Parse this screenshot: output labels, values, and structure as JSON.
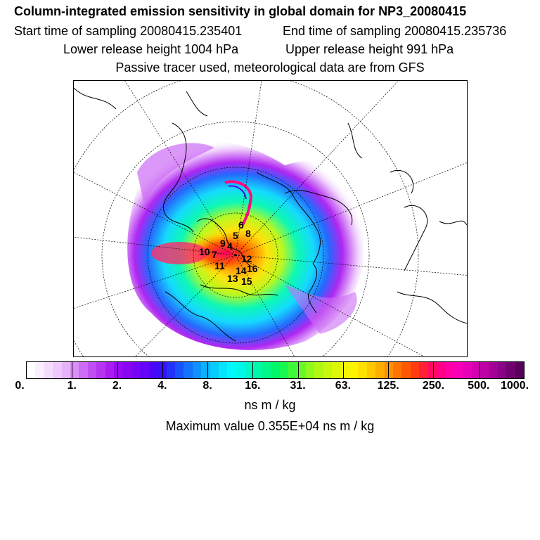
{
  "header": {
    "title": "Column-integrated emission sensitivity in global domain for NP3_20080415",
    "start_time": "Start time of sampling 20080415.235401",
    "end_time": "End time of sampling 20080415.235736",
    "lower_release": "Lower release height 1004 hPa",
    "upper_release": "Upper release height  991 hPa",
    "tracer_note": "Passive tracer used, meteorological data are from GFS"
  },
  "map": {
    "projection": "north-polar-stereographic",
    "field": "Column-integrated emission sensitivity",
    "embedded_labels": [
      "6",
      "5",
      "4",
      "9",
      "7",
      "11",
      "12",
      "14",
      "15",
      "13",
      "16",
      "10",
      "8"
    ]
  },
  "colorbar": {
    "tick_labels": [
      "0.",
      "1.",
      "2.",
      "4.",
      "8.",
      "16.",
      "31.",
      "63.",
      "125.",
      "250.",
      "500.",
      "1000."
    ],
    "units": "ns m / kg",
    "colors": [
      "#ffffff",
      "#fbeefe",
      "#f5dcfd",
      "#eecafc",
      "#e6b3fa",
      "#d98ff7",
      "#cc6cf5",
      "#c04ff3",
      "#b535f1",
      "#aa1cf0",
      "#9a0af0",
      "#8a06f3",
      "#7a04f6",
      "#6404f8",
      "#4c06fa",
      "#3612fb",
      "#2333fc",
      "#1852fd",
      "#1372fe",
      "#1092fe",
      "#0bb0fe",
      "#08ccfe",
      "#05e4fe",
      "#00f8fe",
      "#00f8e8",
      "#00f8c8",
      "#00f8a8",
      "#00f888",
      "#00f868",
      "#18f850",
      "#40f838",
      "#68f828",
      "#90f81c",
      "#b0f814",
      "#c8f80c",
      "#dcf808",
      "#f0f808",
      "#fff400",
      "#ffe000",
      "#ffc800",
      "#ffac00",
      "#ff9000",
      "#ff7400",
      "#ff5800",
      "#ff3c10",
      "#ff2038",
      "#ff0a60",
      "#ff0088",
      "#ff00a8",
      "#f800b8",
      "#e800b8",
      "#d400b0",
      "#bc00a4",
      "#a40096",
      "#8a0086",
      "#700070",
      "#580058"
    ]
  },
  "maximum": "Maximum value  0.355E+04 ns m / kg"
}
